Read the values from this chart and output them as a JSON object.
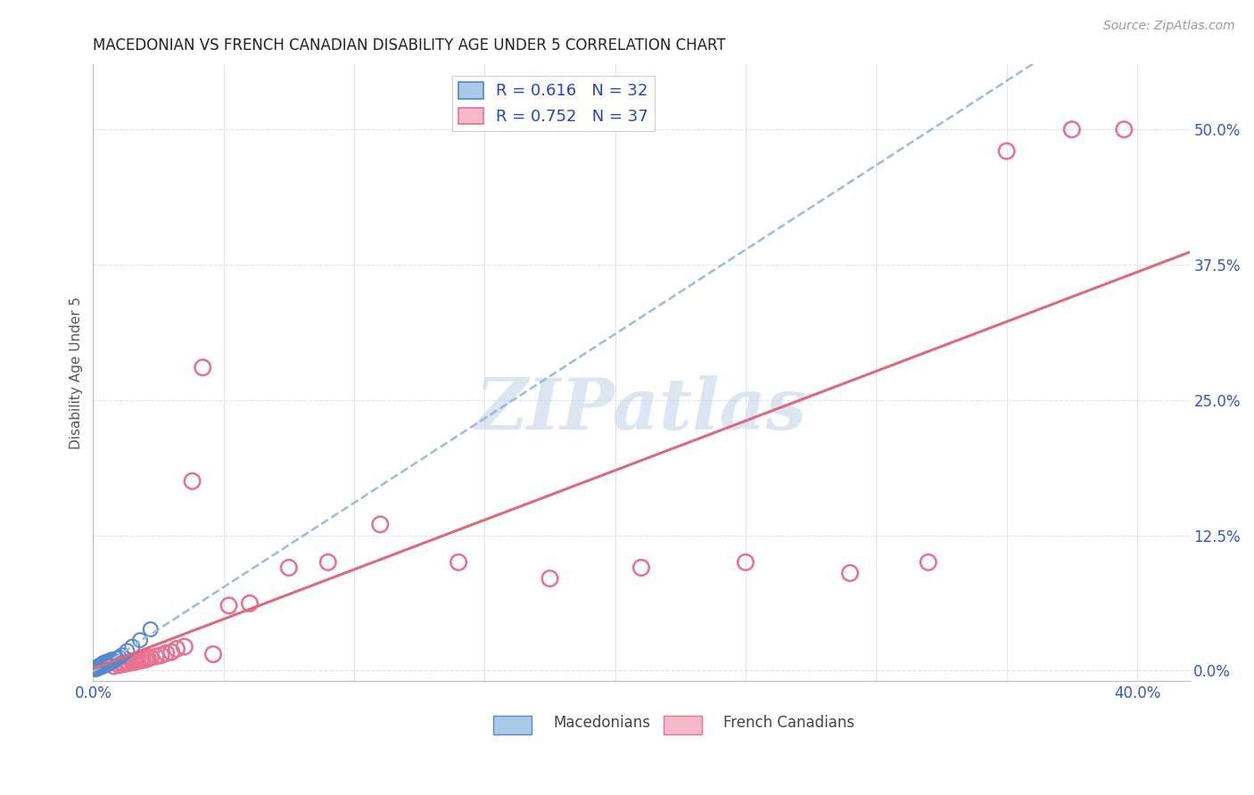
{
  "title": "MACEDONIAN VS FRENCH CANADIAN DISABILITY AGE UNDER 5 CORRELATION CHART",
  "source": "Source: ZipAtlas.com",
  "ylabel": "Disability Age Under 5",
  "xlim": [
    0.0,
    0.42
  ],
  "ylim": [
    -0.01,
    0.56
  ],
  "xtick_vals": [
    0.0,
    0.05,
    0.1,
    0.15,
    0.2,
    0.25,
    0.3,
    0.35,
    0.4
  ],
  "xtick_labels": [
    "0.0%",
    "",
    "",
    "",
    "",
    "",
    "",
    "",
    "40.0%"
  ],
  "ytick_vals": [
    0.0,
    0.125,
    0.25,
    0.375,
    0.5
  ],
  "ytick_labels": [
    "0.0%",
    "12.5%",
    "25.0%",
    "37.5%",
    "50.0%"
  ],
  "macedonian_color": "#aac8e8",
  "macedonian_edge": "#5588cc",
  "french_color": "#f8b8cc",
  "french_edge": "#e87090",
  "trend_mac_color": "#99bbdd",
  "trend_mac_style": "--",
  "trend_fr_color": "#e06878",
  "trend_fr_style": "-",
  "legend_mac_label": "R = 0.616   N = 32",
  "legend_fr_label": "R = 0.752   N = 37",
  "legend_text_color": "#2244cc",
  "tick_color": "#3355cc",
  "grid_color": "#dde0ee",
  "bg_color": "#ffffff",
  "title_color": "#222222",
  "source_color": "#999999",
  "watermark": "ZIPatlas",
  "watermark_color": "#c5d5ea",
  "macedonian_x": [
    0.001,
    0.001,
    0.001,
    0.002,
    0.002,
    0.002,
    0.002,
    0.003,
    0.003,
    0.003,
    0.003,
    0.003,
    0.004,
    0.004,
    0.004,
    0.004,
    0.005,
    0.005,
    0.005,
    0.005,
    0.006,
    0.006,
    0.007,
    0.007,
    0.008,
    0.009,
    0.01,
    0.011,
    0.013,
    0.015,
    0.018,
    0.022
  ],
  "macedonian_y": [
    0.001,
    0.002,
    0.002,
    0.002,
    0.003,
    0.003,
    0.004,
    0.003,
    0.004,
    0.004,
    0.005,
    0.005,
    0.004,
    0.005,
    0.006,
    0.007,
    0.005,
    0.006,
    0.007,
    0.008,
    0.006,
    0.008,
    0.008,
    0.01,
    0.009,
    0.011,
    0.012,
    0.014,
    0.018,
    0.022,
    0.028,
    0.038
  ],
  "french_x": [
    0.008,
    0.01,
    0.011,
    0.012,
    0.013,
    0.014,
    0.015,
    0.016,
    0.017,
    0.018,
    0.019,
    0.02,
    0.021,
    0.022,
    0.024,
    0.026,
    0.028,
    0.03,
    0.032,
    0.035,
    0.038,
    0.042,
    0.046,
    0.052,
    0.06,
    0.075,
    0.09,
    0.11,
    0.14,
    0.175,
    0.21,
    0.25,
    0.29,
    0.32,
    0.35,
    0.375,
    0.395
  ],
  "french_y": [
    0.004,
    0.005,
    0.006,
    0.006,
    0.007,
    0.007,
    0.008,
    0.008,
    0.009,
    0.009,
    0.01,
    0.01,
    0.011,
    0.012,
    0.013,
    0.014,
    0.016,
    0.017,
    0.02,
    0.022,
    0.175,
    0.28,
    0.015,
    0.06,
    0.062,
    0.095,
    0.1,
    0.135,
    0.1,
    0.085,
    0.095,
    0.1,
    0.09,
    0.1,
    0.48,
    0.5,
    0.5
  ]
}
